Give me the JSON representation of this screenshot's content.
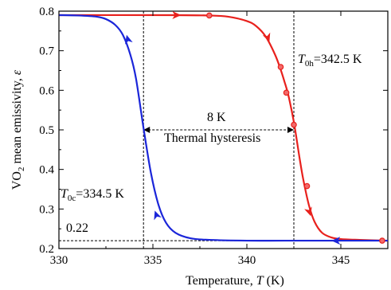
{
  "chart_data": {
    "type": "line",
    "xlabel": "Temperature, ",
    "xlabel_var": "T",
    "xlabel_unit": " (K)",
    "ylabel": "VO",
    "ylabel_sub": "2",
    "ylabel_rest": " mean emissivity, ",
    "ylabel_var": "ε",
    "xlim": [
      330,
      347.5
    ],
    "ylim": [
      0.2,
      0.8
    ],
    "xticks": [
      330,
      335,
      340,
      345
    ],
    "xtick_labels": [
      "330",
      "335",
      "340",
      "345"
    ],
    "yticks": [
      0.2,
      0.3,
      0.4,
      0.5,
      0.6,
      0.7,
      0.8
    ],
    "ytick_labels": [
      "0.2",
      "0.3",
      "0.4",
      "0.5",
      "0.6",
      "0.7",
      "0.8"
    ],
    "grid": false,
    "series": [
      {
        "color": "#e8211d",
        "direction": "heating",
        "x": [
          330.0,
          336.0,
          338.0,
          339.0,
          340.0,
          340.5,
          341.0,
          341.5,
          341.8,
          342.0,
          342.2,
          342.5,
          342.8,
          343.0,
          343.3,
          343.6,
          344.0,
          344.5,
          345.0,
          346.0,
          347.5
        ],
        "y": [
          0.79,
          0.79,
          0.789,
          0.786,
          0.775,
          0.762,
          0.736,
          0.69,
          0.652,
          0.622,
          0.589,
          0.52,
          0.43,
          0.375,
          0.31,
          0.268,
          0.24,
          0.228,
          0.224,
          0.222,
          0.22
        ],
        "markers": [
          {
            "x": 338.0,
            "y": 0.789
          },
          {
            "x": 341.8,
            "y": 0.659
          },
          {
            "x": 342.1,
            "y": 0.594
          },
          {
            "x": 342.5,
            "y": 0.513
          },
          {
            "x": 343.2,
            "y": 0.358
          },
          {
            "x": 347.2,
            "y": 0.22
          }
        ]
      },
      {
        "color": "#1b26d9",
        "direction": "cooling",
        "x": [
          330.0,
          331.0,
          332.0,
          332.5,
          333.0,
          333.4,
          333.8,
          334.1,
          334.5,
          334.9,
          335.3,
          335.7,
          336.2,
          337.0,
          338.0,
          340.0,
          342.0,
          345.0,
          347.5
        ],
        "y": [
          0.79,
          0.789,
          0.786,
          0.78,
          0.765,
          0.74,
          0.69,
          0.63,
          0.505,
          0.39,
          0.31,
          0.265,
          0.24,
          0.226,
          0.222,
          0.22,
          0.22,
          0.22,
          0.22
        ]
      }
    ],
    "annotations": {
      "t0h_var": "T",
      "t0h_sub": "0h",
      "t0h_val": "=342.5 K",
      "t0c_var": "T",
      "t0c_sub": "0c",
      "t0c_val": "=334.5 K",
      "gap_label": "8 K",
      "hysteresis_label": "Thermal hysteresis",
      "baseline_label": "0.22",
      "t0h_x": 342.5,
      "t0c_x": 334.5,
      "baseline_y": 0.22,
      "hysteresis_y": 0.5
    }
  }
}
